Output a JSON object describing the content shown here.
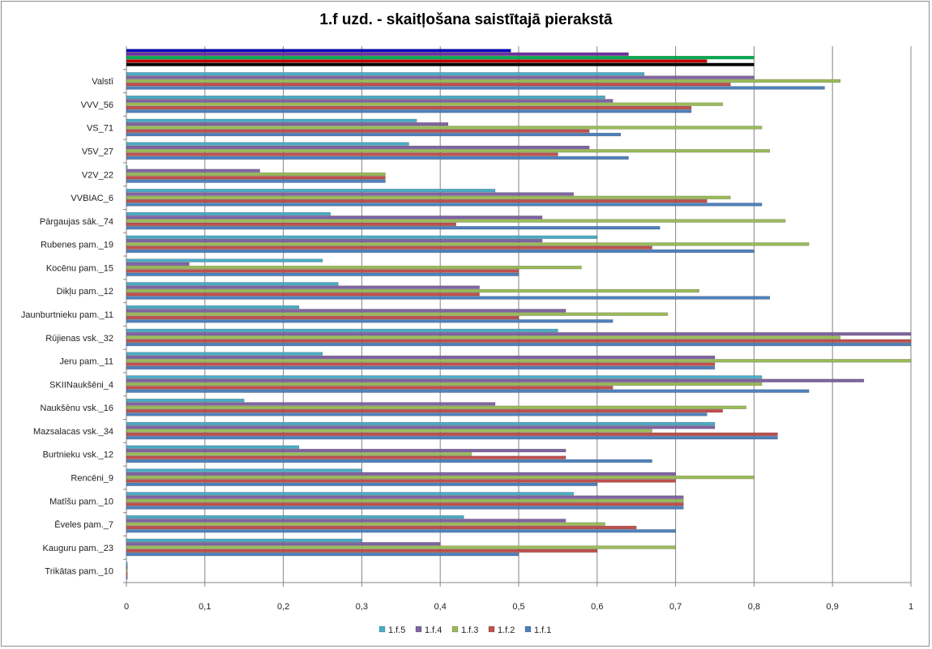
{
  "chart_data": {
    "type": "bar",
    "orientation": "horizontal",
    "title": "1.f uzd. - skaitļošana saistītajā pierakstā",
    "xlim": [
      0,
      1
    ],
    "x_ticks": [
      "0",
      "0,1",
      "0,2",
      "0,3",
      "0,4",
      "0,5",
      "0,6",
      "0,7",
      "0,8",
      "0,9",
      "1"
    ],
    "grid": "vertical major gridlines",
    "legend_position": "bottom",
    "categories": [
      "Trikātas pam._10",
      "Kauguru pam._23",
      "Ēveles pam._7",
      "Matīšu pam._10",
      "Rencēni_9",
      "Burtnieku vsk._12",
      "Mazsalacas vsk._34",
      "Naukšēnu vsk._16",
      "SKIINaukšēni_4",
      "Jeru pam._11",
      "Rūjienas vsk._32",
      "Jaunburtnieku pam._11",
      "Dikļu pam._12",
      "Kocēnu pam._15",
      "Rubenes pam._19",
      "Pārgaujas sāk._74",
      "VVBIAC_6",
      "V2V_22",
      "V5V_27",
      "VS_71",
      "VVV_56",
      "Valstī",
      ""
    ],
    "series": [
      {
        "name": "1.f.1",
        "color": "#4f81bd",
        "values": [
          0,
          0.5,
          0.7,
          0.71,
          0.6,
          0.67,
          0.83,
          0.74,
          0.87,
          0.75,
          1.0,
          0.62,
          0.82,
          0.5,
          0.8,
          0.68,
          0.81,
          0.33,
          0.64,
          0.63,
          0.72,
          0.89,
          0.8
        ]
      },
      {
        "name": "1.f.2",
        "color": "#c0504d",
        "values": [
          0,
          0.6,
          0.65,
          0.71,
          0.7,
          0.56,
          0.83,
          0.76,
          0.62,
          0.75,
          1.0,
          0.5,
          0.45,
          0.5,
          0.67,
          0.42,
          0.74,
          0.33,
          0.55,
          0.59,
          0.72,
          0.77,
          0.74
        ]
      },
      {
        "name": "1.f.3",
        "color": "#9bbb59",
        "values": [
          0,
          0.7,
          0.61,
          0.71,
          0.8,
          0.44,
          0.67,
          0.79,
          0.81,
          1.0,
          0.91,
          0.69,
          0.73,
          0.58,
          0.87,
          0.84,
          0.77,
          0.33,
          0.82,
          0.81,
          0.76,
          0.91,
          0.8
        ]
      },
      {
        "name": "1.f.4",
        "color": "#8064a2",
        "values": [
          0,
          0.4,
          0.56,
          0.71,
          0.7,
          0.56,
          0.75,
          0.47,
          0.94,
          0.75,
          1.0,
          0.56,
          0.45,
          0.08,
          0.53,
          0.53,
          0.57,
          0.17,
          0.59,
          0.41,
          0.62,
          0.8,
          0.64
        ]
      },
      {
        "name": "1.f.5",
        "color": "#4bacc6",
        "values": [
          0,
          0.3,
          0.43,
          0.57,
          0.3,
          0.22,
          0.75,
          0.15,
          0.81,
          0.25,
          0.55,
          0.22,
          0.27,
          0.25,
          0.6,
          0.26,
          0.47,
          0.0,
          0.36,
          0.37,
          0.61,
          0.66,
          0.49
        ]
      }
    ],
    "unlabeled_row_colors": [
      "#000000",
      "#c00000",
      "#00b050",
      "#7030a0",
      "#0000c0"
    ]
  }
}
